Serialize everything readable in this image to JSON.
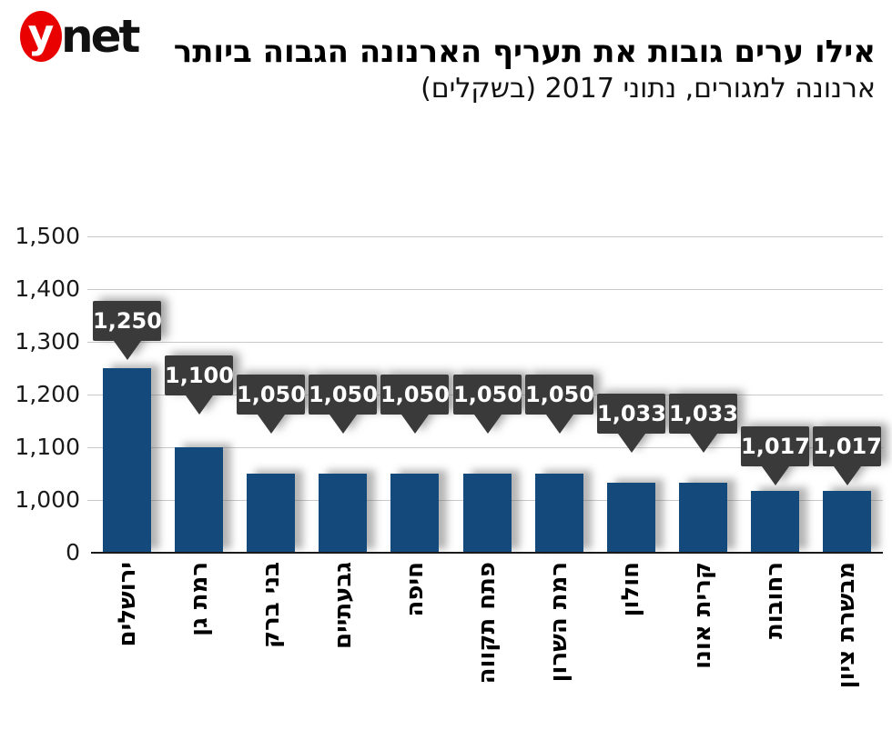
{
  "logo": {
    "mark": "y",
    "text": "net",
    "mark_color": "#e90000"
  },
  "header": {
    "title": "אילו ערים גובות את תעריף הארנונה הגבוה ביותר",
    "subtitle": "ארנונה למגורים, נתוני 2017 (בשקלים)"
  },
  "chart_data": {
    "type": "bar",
    "title": "אילו ערים גובות את תעריף הארנונה הגבוה ביותר",
    "subtitle": "ארנונה למגורים, נתוני 2017 (בשקלים)",
    "categories": [
      "ירושלים",
      "רמת גן",
      "בני ברק",
      "גבעתיים",
      "חיפה",
      "פתח תקווה",
      "רמת השרון",
      "חולון",
      "קרית אונו",
      "רחובות",
      "מבשרת ציון"
    ],
    "values": [
      1250,
      1100,
      1050,
      1050,
      1050,
      1050,
      1050,
      1033,
      1033,
      1017,
      1017
    ],
    "value_labels": [
      "1,250",
      "1,100",
      "1,050",
      "1,050",
      "1,050",
      "1,050",
      "1,050",
      "1,033",
      "1,033",
      "1,017",
      "1,017"
    ],
    "xlabel": "",
    "ylabel": "",
    "yticks": [
      0,
      1000,
      1100,
      1200,
      1300,
      1400,
      1500
    ],
    "ytick_labels": [
      "0",
      "1,000",
      "1,100",
      "1,200",
      "1,300",
      "1,400",
      "1,500"
    ],
    "ylim": [
      0,
      1500
    ],
    "axis_break_between": [
      0,
      1000
    ],
    "grid": true,
    "legend": false,
    "bar_color": "#14497c",
    "callout_bg": "#3a3a3a",
    "callout_text_color": "#ffffff",
    "gridline_color": "#c9c9c9",
    "axis_color": "#1a1a1a"
  }
}
